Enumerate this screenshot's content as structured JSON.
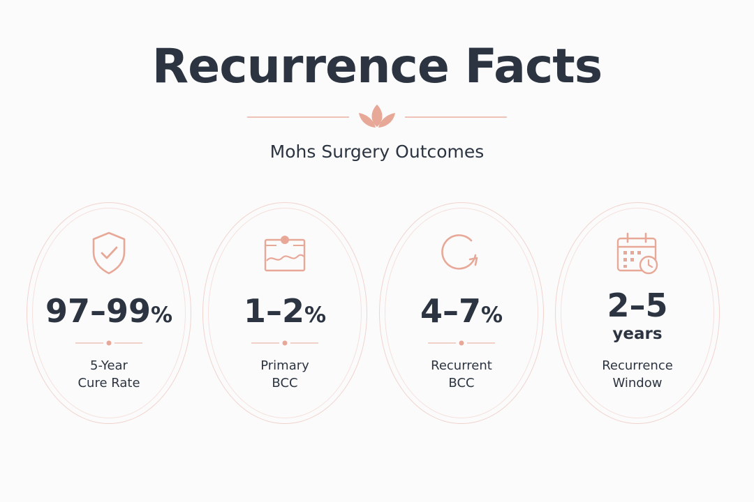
{
  "header": {
    "title": "Recurrence Facts",
    "subtitle": "Mohs Surgery Outcomes"
  },
  "colors": {
    "accent": "#e8a898",
    "accent_light": "#f1d3cd",
    "text": "#2b3440",
    "background": "#fbfbfb"
  },
  "cards": [
    {
      "icon": "shield-check-icon",
      "value_main": "97–99",
      "value_unit": "%",
      "label_line1": "5-Year",
      "label_line2": "Cure Rate"
    },
    {
      "icon": "skin-layer-icon",
      "value_main": "1–2",
      "value_unit": "%",
      "label_line1": "Primary",
      "label_line2": "BCC"
    },
    {
      "icon": "recurrence-cycle-icon",
      "value_main": "4–7",
      "value_unit": "%",
      "label_line1": "Recurrent",
      "label_line2": "BCC"
    },
    {
      "icon": "calendar-clock-icon",
      "value_main": "2–5",
      "value_sub": "years",
      "label_line1": "Recurrence",
      "label_line2": "Window"
    }
  ]
}
